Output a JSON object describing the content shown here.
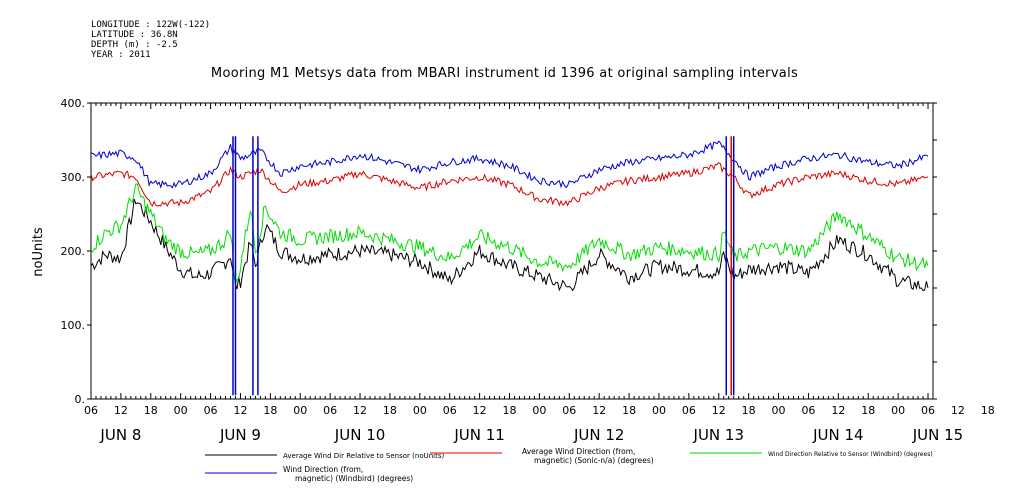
{
  "meta": {
    "longitude": "LONGITUDE : 122W(-122)",
    "latitude": "LATITUDE : 36.8N",
    "depth": "DEPTH (m) : -2.5",
    "year": "YEAR : 2011"
  },
  "chart_data": {
    "type": "line",
    "title": "Mooring M1 Metsys data from MBARI instrument id 1396 at original sampling intervals",
    "ylabel": "noUnits",
    "xlabel": "",
    "ylim": [
      0,
      400
    ],
    "xlim": [
      "2011-06-08 06:00",
      "2011-06-15 07:00"
    ],
    "y_ticks": [
      "0.",
      "100.",
      "200.",
      "300.",
      "400."
    ],
    "x_hour_ticks": [
      "06",
      "12",
      "18",
      "00",
      "06",
      "12",
      "18",
      "00",
      "06",
      "12",
      "18",
      "00",
      "06",
      "12",
      "18",
      "00",
      "06",
      "12",
      "18",
      "00",
      "06",
      "12",
      "18",
      "00",
      "06",
      "12",
      "18",
      "00",
      "06",
      "12",
      "18",
      "00",
      "06"
    ],
    "x_day_labels": [
      "JUN  8",
      "JUN  9",
      "JUN 10",
      "JUN 11",
      "JUN 12",
      "JUN 13",
      "JUN 14",
      "JUN 15"
    ],
    "series": [
      {
        "name": "Average Wind Dir Relative to Sensor (noUnits)",
        "color": "#000000",
        "x": [
          "06-08 06:00",
          "06-08 09:00",
          "06-08 12:00",
          "06-08 15:00",
          "06-08 18:00",
          "06-08 21:00",
          "06-09 00:00",
          "06-09 03:00",
          "06-09 06:00",
          "06-09 09:00",
          "06-09 10:00",
          "06-09 11:00",
          "06-09 12:00",
          "06-09 14:00",
          "06-09 15:00",
          "06-09 17:00",
          "06-09 20:00",
          "06-10 00:00",
          "06-10 06:00",
          "06-10 12:00",
          "06-10 18:00",
          "06-11 00:00",
          "06-11 06:00",
          "06-11 12:00",
          "06-11 18:00",
          "06-12 00:00",
          "06-12 06:00",
          "06-12 12:00",
          "06-12 18:00",
          "06-13 00:00",
          "06-13 06:00",
          "06-13 12:00",
          "06-13 13:00",
          "06-13 14:00",
          "06-13 15:00",
          "06-13 18:00",
          "06-14 00:00",
          "06-14 06:00",
          "06-14 12:00",
          "06-14 18:00",
          "06-15 00:00",
          "06-15 06:00"
        ],
        "y": [
          180,
          195,
          190,
          270,
          240,
          205,
          175,
          165,
          170,
          185,
          195,
          150,
          160,
          210,
          180,
          235,
          200,
          190,
          195,
          200,
          195,
          185,
          160,
          200,
          180,
          165,
          150,
          195,
          165,
          180,
          175,
          170,
          195,
          180,
          165,
          175,
          180,
          170,
          215,
          195,
          160,
          150
        ]
      },
      {
        "name": "Average Wind Direction (from, magnetic) (Sonic-n/a) (degrees)",
        "color": "#dd0000",
        "x": [
          "06-08 06:00",
          "06-08 12:00",
          "06-08 15:00",
          "06-08 18:00",
          "06-09 00:00",
          "06-09 06:00",
          "06-09 10:00",
          "06-09 12:00",
          "06-09 16:00",
          "06-09 20:00",
          "06-10 00:00",
          "06-10 06:00",
          "06-10 12:00",
          "06-10 18:00",
          "06-11 00:00",
          "06-11 06:00",
          "06-11 12:00",
          "06-11 18:00",
          "06-12 00:00",
          "06-12 06:00",
          "06-12 12:00",
          "06-12 18:00",
          "06-13 00:00",
          "06-13 06:00",
          "06-13 12:00",
          "06-13 15:00",
          "06-13 18:00",
          "06-14 00:00",
          "06-14 06:00",
          "06-14 12:00",
          "06-14 18:00",
          "06-15 00:00",
          "06-15 06:00"
        ],
        "y": [
          300,
          305,
          300,
          265,
          265,
          280,
          310,
          300,
          310,
          280,
          290,
          295,
          305,
          295,
          285,
          295,
          300,
          290,
          270,
          265,
          285,
          295,
          300,
          305,
          315,
          300,
          275,
          290,
          300,
          305,
          295,
          290,
          300
        ]
      },
      {
        "name": "Wind Direction Relative to Sensor (Windbird) (degrees)",
        "color": "#00dd00",
        "x": [
          "06-08 06:00",
          "06-08 09:00",
          "06-08 12:00",
          "06-08 15:00",
          "06-08 18:00",
          "06-08 21:00",
          "06-09 00:00",
          "06-09 03:00",
          "06-09 06:00",
          "06-09 09:00",
          "06-09 10:00",
          "06-09 11:00",
          "06-09 12:00",
          "06-09 14:00",
          "06-09 15:00",
          "06-09 17:00",
          "06-09 20:00",
          "06-10 00:00",
          "06-10 06:00",
          "06-10 12:00",
          "06-10 18:00",
          "06-11 00:00",
          "06-11 06:00",
          "06-11 12:00",
          "06-11 18:00",
          "06-12 00:00",
          "06-12 06:00",
          "06-12 12:00",
          "06-12 18:00",
          "06-13 00:00",
          "06-13 06:00",
          "06-13 12:00",
          "06-13 13:00",
          "06-13 14:00",
          "06-13 15:00",
          "06-13 18:00",
          "06-14 00:00",
          "06-14 06:00",
          "06-14 12:00",
          "06-14 18:00",
          "06-15 00:00",
          "06-15 06:00"
        ],
        "y": [
          205,
          225,
          235,
          285,
          250,
          215,
          200,
          195,
          200,
          215,
          230,
          150,
          180,
          260,
          200,
          260,
          225,
          215,
          220,
          225,
          215,
          205,
          190,
          220,
          205,
          185,
          180,
          215,
          195,
          205,
          200,
          195,
          225,
          210,
          190,
          200,
          205,
          200,
          250,
          220,
          190,
          180
        ]
      },
      {
        "name": "Wind Direction (from, magnetic) (Windbird) (degrees)",
        "color": "#0000cc",
        "x": [
          "06-08 06:00",
          "06-08 12:00",
          "06-08 15:00",
          "06-08 18:00",
          "06-09 00:00",
          "06-09 06:00",
          "06-09 10:00",
          "06-09 12:00",
          "06-09 16:00",
          "06-09 20:00",
          "06-10 00:00",
          "06-10 06:00",
          "06-10 12:00",
          "06-10 18:00",
          "06-11 00:00",
          "06-11 06:00",
          "06-11 12:00",
          "06-11 18:00",
          "06-12 00:00",
          "06-12 06:00",
          "06-12 12:00",
          "06-12 18:00",
          "06-13 00:00",
          "06-13 06:00",
          "06-13 12:00",
          "06-13 15:00",
          "06-13 18:00",
          "06-14 00:00",
          "06-14 06:00",
          "06-14 12:00",
          "06-14 18:00",
          "06-15 00:00",
          "06-15 06:00"
        ],
        "y": [
          328,
          332,
          325,
          290,
          290,
          305,
          340,
          325,
          335,
          305,
          315,
          320,
          330,
          320,
          310,
          320,
          325,
          315,
          295,
          290,
          310,
          320,
          325,
          330,
          345,
          325,
          300,
          315,
          325,
          330,
          320,
          315,
          328
        ]
      }
    ],
    "legend": [
      {
        "label": "Average Wind Dir Relative to Sensor (noUnits)",
        "color": "#000000"
      },
      {
        "label": "Average Wind Direction (from,\nmagnetic) (Sonic-n/a) (degrees)",
        "color": "#dd0000"
      },
      {
        "label": "Wind Direction Relative to Sensor (Windbird) (degrees)",
        "color": "#00dd00"
      },
      {
        "label": "Wind Direction (from,\nmagnetic) (Windbird) (degrees)",
        "color": "#0000cc"
      }
    ],
    "legend_position": "bottom",
    "grid": false
  }
}
